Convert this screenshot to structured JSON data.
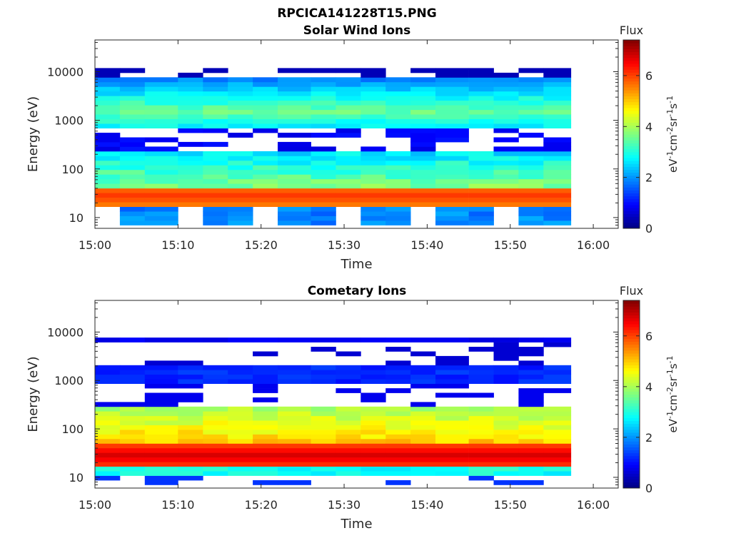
{
  "figure_title": "RPCICA141228T15.PNG",
  "chart_data": [
    {
      "type": "heatmap",
      "title": "Solar Wind Ions",
      "xlabel": "Time",
      "ylabel": "Energy (eV)",
      "yscale": "log",
      "xlim": [
        "15:00",
        "16:03"
      ],
      "ylim": [
        6,
        45000
      ],
      "x_ticks": [
        "15:00",
        "15:10",
        "15:20",
        "15:30",
        "15:40",
        "15:50",
        "16:00"
      ],
      "y_ticks": [
        "10",
        "100",
        "1000",
        "10000"
      ],
      "colorbar": {
        "label": "Flux",
        "units": "eV-1cm-2sr-1s-1",
        "range": [
          0,
          7.4
        ],
        "ticks": [
          "0",
          "2",
          "4",
          "6"
        ]
      },
      "time_bins": [
        "15:00",
        "15:03",
        "15:06",
        "15:10",
        "15:13",
        "15:16",
        "15:19",
        "15:22",
        "15:26",
        "15:29",
        "15:32",
        "15:35",
        "15:38",
        "15:41",
        "15:45",
        "15:48",
        "15:51",
        "15:54"
      ],
      "energy_profile_kev": {
        "thermal_core": {
          "energy": 30,
          "flux": 5.5
        },
        "mid_energy_tail": {
          "energy_range": [
            40,
            220
          ],
          "flux": 3.0
        },
        "alpha_band": {
          "energy_range": [
            700,
            8500
          ],
          "flux": 2.4
        },
        "upper_band_peak": {
          "energy": 1500,
          "flux": 3.0
        }
      },
      "grid": false,
      "legend": "colorbar-right"
    },
    {
      "type": "heatmap",
      "title": "Cometary Ions",
      "xlabel": "Time",
      "ylabel": "Energy (eV)",
      "yscale": "log",
      "xlim": [
        "15:00",
        "16:03"
      ],
      "ylim": [
        6,
        45000
      ],
      "x_ticks": [
        "15:00",
        "15:10",
        "15:20",
        "15:30",
        "15:40",
        "15:50",
        "16:00"
      ],
      "y_ticks": [
        "10",
        "100",
        "1000",
        "10000"
      ],
      "colorbar": {
        "label": "Flux",
        "units": "eV-1cm-2sr-1s-1",
        "range": [
          0,
          7.4
        ],
        "ticks": [
          "0",
          "2",
          "4",
          "6"
        ]
      },
      "time_bins": [
        "15:00",
        "15:03",
        "15:06",
        "15:10",
        "15:13",
        "15:16",
        "15:19",
        "15:22",
        "15:26",
        "15:29",
        "15:32",
        "15:35",
        "15:38",
        "15:41",
        "15:45",
        "15:48",
        "15:51",
        "15:54"
      ],
      "energy_profile_kev": {
        "core": {
          "energy": 28,
          "flux": 6.0
        },
        "mid_energy_tail": {
          "energy_range": [
            40,
            300
          ],
          "flux": 3.8
        },
        "band_1000": {
          "energy_range": [
            900,
            2000
          ],
          "flux": 1.2
        },
        "band_7000": {
          "energy_range": [
            6500,
            8500
          ],
          "flux": 0.8
        }
      },
      "grid": false,
      "legend": "colorbar-right"
    }
  ]
}
